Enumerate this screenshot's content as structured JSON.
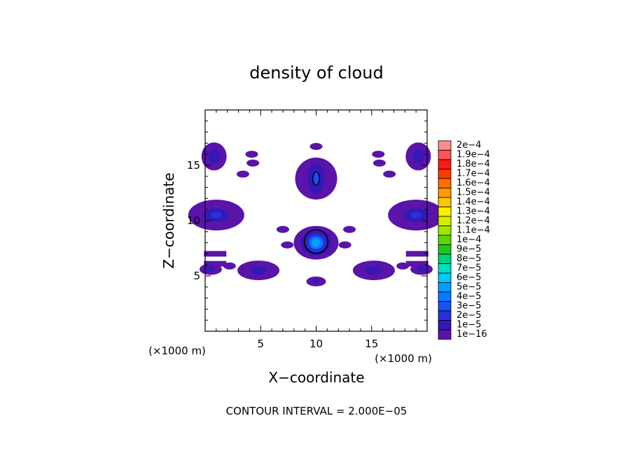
{
  "chart_data": {
    "type": "heatmap",
    "title": "density of cloud",
    "xlabel": "X−coordinate",
    "ylabel": "Z−coordinate",
    "x_unit": "(×1000 m)",
    "y_unit": "(×1000 m)",
    "xlim": [
      0,
      20
    ],
    "ylim": [
      0,
      20
    ],
    "xticks": [
      5,
      10,
      15
    ],
    "yticks": [
      5,
      10,
      15
    ],
    "xtick_labels": [
      "5",
      "10",
      "15"
    ],
    "ytick_labels": [
      "5",
      "10",
      "15"
    ],
    "contour_interval_text": "CONTOUR INTERVAL = 2.000E−05",
    "contour_interval": 2e-05,
    "colorbar": {
      "labels": [
        "2e−4",
        "1.9e−4",
        "1.8e−4",
        "1.7e−4",
        "1.6e−4",
        "1.5e−4",
        "1.4e−4",
        "1.3e−4",
        "1.2e−4",
        "1.1e−4",
        "1e−4",
        "9e−5",
        "8e−5",
        "7e−5",
        "6e−5",
        "5e−5",
        "4e−5",
        "3e−5",
        "2e−5",
        "1e−5",
        "1e−16"
      ],
      "values": [
        0.0002,
        0.00019,
        0.00018,
        0.00017,
        0.00016,
        0.00015,
        0.00014,
        0.00013,
        0.00012,
        0.00011,
        0.0001,
        9e-05,
        8e-05,
        7e-05,
        6e-05,
        5e-05,
        4e-05,
        3e-05,
        2e-05,
        1e-05,
        1e-16
      ],
      "colors": [
        "#ff8c8c",
        "#ff5555",
        "#ff1a1a",
        "#ff3a00",
        "#ff6e00",
        "#ff9a00",
        "#ffc400",
        "#ffee00",
        "#d4ee00",
        "#9ce600",
        "#5ad800",
        "#1ec81e",
        "#00d27a",
        "#00e0c0",
        "#00c8ff",
        "#00a0ff",
        "#0a78ff",
        "#1a50f0",
        "#2b2fd6",
        "#3418b8",
        "#5a14a8"
      ]
    },
    "features": [
      {
        "x": 10.0,
        "z": 8.0,
        "peak": 5.5e-05
      },
      {
        "x": 10.0,
        "z": 13.8,
        "peak": 3e-05
      },
      {
        "x": 0.8,
        "z": 15.8,
        "peak": 1.5e-05
      },
      {
        "x": 19.2,
        "z": 15.8,
        "peak": 1.5e-05
      },
      {
        "x": 1.0,
        "z": 10.5,
        "peak": 2e-05
      },
      {
        "x": 19.0,
        "z": 10.5,
        "peak": 2e-05
      },
      {
        "x": 4.8,
        "z": 5.5,
        "peak": 1.5e-05
      },
      {
        "x": 15.2,
        "z": 5.5,
        "peak": 1.5e-05
      },
      {
        "x": 0.5,
        "z": 5.6,
        "peak": 1.2e-05
      },
      {
        "x": 19.5,
        "z": 5.6,
        "peak": 1.2e-05
      },
      {
        "x": 10.0,
        "z": 4.5,
        "peak": 1e-05
      }
    ]
  }
}
